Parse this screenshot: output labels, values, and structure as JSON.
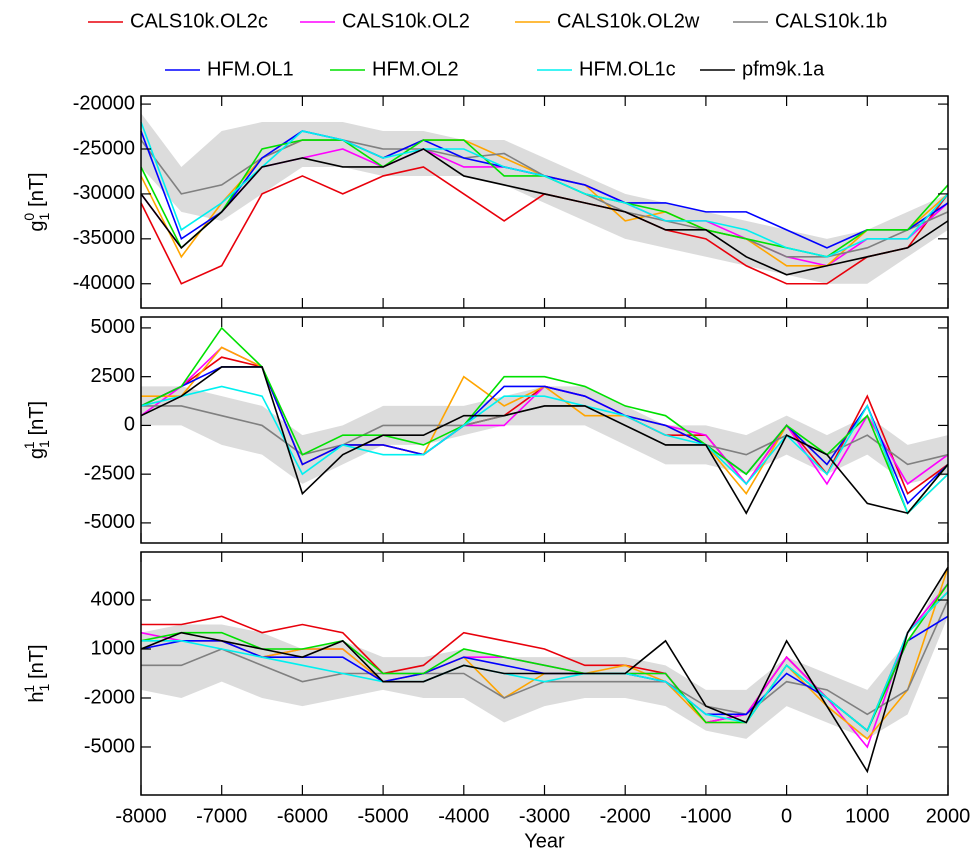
{
  "chart_data": [
    {
      "type": "line",
      "ylabel": {
        "base": "g",
        "sub": "1",
        "sup": "0",
        "unit": "[nT]"
      },
      "x": [
        -8000,
        -7500,
        -7000,
        -6500,
        -6000,
        -5500,
        -5000,
        -4500,
        -4000,
        -3500,
        -3000,
        -2500,
        -2000,
        -1500,
        -1000,
        -500,
        0,
        500,
        1000,
        1500,
        2000
      ],
      "xlim": [
        -8000,
        2000
      ],
      "xticks": [
        -8000,
        -7000,
        -6000,
        -5000,
        -4000,
        -3000,
        -2000,
        -1000,
        0,
        1000,
        2000
      ],
      "ylim": [
        -42700,
        -19100
      ],
      "yticks": [
        -40000,
        -35000,
        -30000,
        -25000,
        -20000
      ],
      "band": {
        "color": "#dcdcdc",
        "upper": [
          -21000,
          -27000,
          -23000,
          -22000,
          -22000,
          -22000,
          -23000,
          -23000,
          -24000,
          -24000,
          -26000,
          -28000,
          -30000,
          -31000,
          -32000,
          -33000,
          -34000,
          -35000,
          -34000,
          -32000,
          -30000
        ],
        "lower": [
          -27000,
          -32000,
          -33000,
          -30000,
          -27000,
          -27000,
          -28000,
          -28000,
          -28000,
          -29000,
          -31000,
          -33000,
          -35000,
          -36000,
          -37000,
          -38000,
          -39000,
          -40000,
          -40000,
          -37000,
          -34000
        ]
      },
      "series": [
        {
          "name": "CALS10k.OL2c",
          "color": "#e8000b",
          "values": [
            -31000,
            -40000,
            -38000,
            -30000,
            -28000,
            -30000,
            -28000,
            -27000,
            -30000,
            -33000,
            -30000,
            -31000,
            -32000,
            -34000,
            -35000,
            -38000,
            -40000,
            -40000,
            -37000,
            -36000,
            -30000
          ]
        },
        {
          "name": "CALS10k.OL2",
          "color": "#ff00ff",
          "values": [
            -30000,
            -36000,
            -32000,
            -27000,
            -26000,
            -25000,
            -27000,
            -25000,
            -27000,
            -27000,
            -28000,
            -29000,
            -31000,
            -33000,
            -33000,
            -35000,
            -37000,
            -38000,
            -35000,
            -35000,
            -31000
          ]
        },
        {
          "name": "CALS10k.OL2w",
          "color": "#ffa500",
          "values": [
            -28000,
            -37000,
            -31000,
            -26000,
            -24000,
            -24000,
            -26000,
            -24000,
            -24000,
            -26000,
            -28000,
            -29000,
            -33000,
            -32000,
            -34000,
            -35000,
            -38000,
            -38000,
            -34000,
            -34000,
            -30000
          ]
        },
        {
          "name": "CALS10k.1b",
          "color": "#808080",
          "values": [
            -24000,
            -30000,
            -29000,
            -26000,
            -24000,
            -24000,
            -25000,
            -25000,
            -26000,
            -25500,
            -28000,
            -30000,
            -32000,
            -33000,
            -34000,
            -35000,
            -37000,
            -37000,
            -36000,
            -34000,
            -32000
          ]
        },
        {
          "name": "HFM.OL1",
          "color": "#0000ff",
          "values": [
            -23000,
            -35000,
            -32000,
            -26000,
            -23000,
            -24000,
            -26000,
            -24000,
            -26000,
            -27000,
            -28000,
            -29000,
            -31000,
            -31000,
            -32000,
            -32000,
            -34000,
            -36000,
            -34000,
            -34000,
            -31000
          ]
        },
        {
          "name": "HFM.OL2",
          "color": "#00e000",
          "values": [
            -27000,
            -36000,
            -32000,
            -25000,
            -24000,
            -24000,
            -27000,
            -24000,
            -24000,
            -28000,
            -28000,
            -30000,
            -31000,
            -32000,
            -34000,
            -35000,
            -36000,
            -37000,
            -34000,
            -34000,
            -29000
          ]
        },
        {
          "name": "HFM.OL1c",
          "color": "#00f0f0",
          "values": [
            -22000,
            -34000,
            -31000,
            -27000,
            -23000,
            -24000,
            -26000,
            -25000,
            -25000,
            -27000,
            -28000,
            -30000,
            -31000,
            -33000,
            -33000,
            -34000,
            -36000,
            -37000,
            -35000,
            -35000,
            -30000
          ]
        },
        {
          "name": "pfm9k.1a",
          "color": "#000000",
          "values": [
            -30000,
            -36000,
            -32000,
            -27000,
            -26000,
            -27000,
            -27000,
            -25000,
            -28000,
            -29000,
            -30000,
            -31000,
            -32000,
            -34000,
            -34000,
            -37000,
            -39000,
            -38000,
            -37000,
            -36000,
            -33000
          ]
        }
      ]
    },
    {
      "type": "line",
      "ylabel": {
        "base": "g",
        "sub": "1",
        "sup": "1",
        "unit": "[nT]"
      },
      "x": [
        -8000,
        -7500,
        -7000,
        -6500,
        -6000,
        -5500,
        -5000,
        -4500,
        -4000,
        -3500,
        -3000,
        -2500,
        -2000,
        -1500,
        -1000,
        -500,
        0,
        500,
        1000,
        1500,
        2000
      ],
      "xlim": [
        -8000,
        2000
      ],
      "xticks": [
        -8000,
        -7000,
        -6000,
        -5000,
        -4000,
        -3000,
        -2000,
        -1000,
        0,
        1000,
        2000
      ],
      "ylim": [
        -6030,
        5560
      ],
      "yticks": [
        -5000,
        -2500,
        0,
        2500,
        5000
      ],
      "band": {
        "color": "#dcdcdc",
        "upper": [
          2000,
          2000,
          1500,
          1000,
          -500,
          0,
          1000,
          1000,
          1000,
          1500,
          2000,
          2000,
          1000,
          0,
          0,
          -500,
          500,
          -500,
          500,
          -1000,
          -500
        ],
        "lower": [
          0,
          0,
          -1000,
          -1500,
          -3000,
          -2000,
          -1000,
          -1000,
          -500,
          0,
          0,
          0,
          -1000,
          -2000,
          -2000,
          -2500,
          -1500,
          -2500,
          -1500,
          -3000,
          -2500
        ]
      },
      "series": [
        {
          "color": "#e8000b",
          "values": [
            1000,
            2000,
            3500,
            3000,
            -2000,
            -1000,
            -1000,
            -1500,
            0,
            500,
            2000,
            1500,
            500,
            -500,
            -500,
            -3000,
            0,
            -2500,
            1500,
            -3500,
            -2000
          ]
        },
        {
          "color": "#ff00ff",
          "values": [
            500,
            2000,
            4000,
            3000,
            -2000,
            -1000,
            -1000,
            -1500,
            0,
            0,
            2000,
            1500,
            500,
            0,
            -500,
            -3000,
            0,
            -3000,
            500,
            -3000,
            -1500
          ]
        },
        {
          "color": "#ffa500",
          "values": [
            1500,
            1500,
            4000,
            3000,
            -2000,
            -1000,
            -1000,
            -1500,
            2500,
            1000,
            2000,
            500,
            500,
            0,
            -1000,
            -3500,
            0,
            -2000,
            1000,
            -4500,
            -2500
          ]
        },
        {
          "color": "#808080",
          "values": [
            1000,
            1000,
            500,
            0,
            -1500,
            -1000,
            0,
            0,
            0,
            500,
            1000,
            1000,
            0,
            -1000,
            -1000,
            -1500,
            -500,
            -1500,
            -500,
            -2000,
            -1500
          ]
        },
        {
          "color": "#0000ff",
          "values": [
            1000,
            2000,
            3000,
            3000,
            -2000,
            -1000,
            -1000,
            -1500,
            0,
            2000,
            2000,
            1500,
            500,
            0,
            -1000,
            -2500,
            0,
            -2000,
            1000,
            -4000,
            -2000
          ]
        },
        {
          "color": "#00e000",
          "values": [
            1000,
            2000,
            5000,
            3000,
            -1500,
            -500,
            -500,
            -1000,
            0,
            2500,
            2500,
            2000,
            1000,
            500,
            -1000,
            -2500,
            0,
            -1500,
            500,
            -4500,
            -2000
          ]
        },
        {
          "color": "#00f0f0",
          "values": [
            1000,
            1500,
            2000,
            1500,
            -2500,
            -1000,
            -1500,
            -1500,
            0,
            1500,
            1500,
            1000,
            500,
            -500,
            -1000,
            -3000,
            -500,
            -2500,
            1000,
            -4500,
            -2500
          ]
        },
        {
          "color": "#000000",
          "values": [
            500,
            1500,
            3000,
            3000,
            -3500,
            -1500,
            -500,
            -500,
            500,
            500,
            1000,
            1000,
            0,
            -1000,
            -1000,
            -4500,
            -500,
            -1500,
            -4000,
            -4500,
            -2000
          ]
        }
      ]
    },
    {
      "type": "line",
      "ylabel": {
        "base": "h",
        "sub": "1",
        "sup": "1",
        "unit": "[nT]"
      },
      "xlabel": "Year",
      "x": [
        -8000,
        -7500,
        -7000,
        -6500,
        -6000,
        -5500,
        -5000,
        -4500,
        -4000,
        -3500,
        -3000,
        -2500,
        -2000,
        -1500,
        -1000,
        -500,
        0,
        500,
        1000,
        1500,
        2000
      ],
      "xlim": [
        -8000,
        2000
      ],
      "xticks": [
        -8000,
        -7000,
        -6000,
        -5000,
        -4000,
        -3000,
        -2000,
        -1000,
        0,
        1000,
        2000
      ],
      "ylim": [
        -7940,
        6940
      ],
      "yticks": [
        -5000,
        -2000,
        1000,
        4000
      ],
      "band": {
        "color": "#dcdcdc",
        "upper": [
          2000,
          2500,
          2500,
          2000,
          1000,
          1500,
          500,
          500,
          1000,
          500,
          500,
          500,
          500,
          0,
          -1500,
          -1500,
          500,
          -500,
          -1500,
          1500,
          6000
        ],
        "lower": [
          -1500,
          -2000,
          -1000,
          -2000,
          -2500,
          -2000,
          -1500,
          -2000,
          -2000,
          -3500,
          -2500,
          -2000,
          -2000,
          -2500,
          -4000,
          -4500,
          -2500,
          -3500,
          -4500,
          -3000,
          3000
        ]
      },
      "series": [
        {
          "color": "#e8000b",
          "values": [
            2500,
            2500,
            3000,
            2000,
            2500,
            2000,
            -500,
            0,
            2000,
            1500,
            1000,
            0,
            0,
            -500,
            -3500,
            -3000,
            500,
            -2000,
            -4000,
            2000,
            4500
          ]
        },
        {
          "color": "#ff00ff",
          "values": [
            2000,
            1500,
            1500,
            500,
            1000,
            1000,
            -1000,
            -500,
            500,
            500,
            0,
            -500,
            -500,
            -500,
            -3500,
            -3000,
            500,
            -2000,
            -5000,
            2000,
            5000
          ]
        },
        {
          "color": "#ffa500",
          "values": [
            1500,
            1500,
            1500,
            500,
            1000,
            1000,
            -1000,
            -500,
            500,
            -2000,
            -500,
            -500,
            0,
            -1000,
            -3500,
            -3500,
            0,
            -2500,
            -4500,
            -1500,
            6000
          ]
        },
        {
          "color": "#808080",
          "values": [
            0,
            0,
            1000,
            0,
            -1000,
            -500,
            -500,
            -500,
            -500,
            -2000,
            -1000,
            -1000,
            -1000,
            -1000,
            -2500,
            -3000,
            -1000,
            -1500,
            -3000,
            -1500,
            4000
          ]
        },
        {
          "color": "#0000ff",
          "values": [
            1000,
            1500,
            1500,
            500,
            500,
            500,
            -1000,
            -500,
            500,
            0,
            -500,
            -500,
            -500,
            -1000,
            -3000,
            -3000,
            -500,
            -2000,
            -4000,
            1500,
            3000
          ]
        },
        {
          "color": "#00e000",
          "values": [
            1500,
            2000,
            2000,
            1000,
            1000,
            1500,
            -500,
            -500,
            1000,
            500,
            0,
            -500,
            -500,
            -500,
            -3500,
            -3500,
            0,
            -2000,
            -4000,
            1500,
            5000
          ]
        },
        {
          "color": "#00f0f0",
          "values": [
            1500,
            1500,
            1000,
            500,
            0,
            -500,
            -1000,
            -1000,
            0,
            -500,
            -1000,
            -500,
            -500,
            -1000,
            -3000,
            -3500,
            0,
            -2000,
            -4000,
            2000,
            4500
          ]
        },
        {
          "color": "#000000",
          "values": [
            1000,
            2000,
            1500,
            1000,
            500,
            1500,
            -1000,
            -1000,
            0,
            -500,
            -500,
            -500,
            -500,
            1500,
            -2500,
            -3500,
            1500,
            -2500,
            -6500,
            2000,
            6000
          ]
        }
      ]
    }
  ]
}
